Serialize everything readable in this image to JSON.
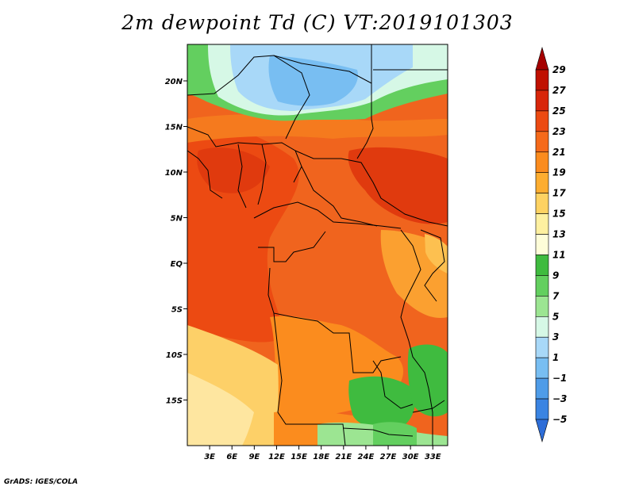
{
  "title": "2m dewpoint Td (C) VT:2019101303",
  "credit": "GrADS: IGES/COLA",
  "map": {
    "lon_range": [
      0,
      35
    ],
    "lat_range": [
      -20,
      24
    ],
    "lon_ticks": [
      {
        "value": 3,
        "label": "3E"
      },
      {
        "value": 6,
        "label": "6E"
      },
      {
        "value": 9,
        "label": "9E"
      },
      {
        "value": 12,
        "label": "12E"
      },
      {
        "value": 15,
        "label": "15E"
      },
      {
        "value": 18,
        "label": "18E"
      },
      {
        "value": 21,
        "label": "21E"
      },
      {
        "value": 24,
        "label": "24E"
      },
      {
        "value": 27,
        "label": "27E"
      },
      {
        "value": 30,
        "label": "30E"
      },
      {
        "value": 33,
        "label": "33E"
      }
    ],
    "lat_ticks": [
      {
        "value": 20,
        "label": "20N"
      },
      {
        "value": 15,
        "label": "15N"
      },
      {
        "value": 10,
        "label": "10N"
      },
      {
        "value": 5,
        "label": "5N"
      },
      {
        "value": 0,
        "label": "EQ"
      },
      {
        "value": -5,
        "label": "5S"
      },
      {
        "value": -10,
        "label": "10S"
      },
      {
        "value": -15,
        "label": "15S"
      }
    ]
  },
  "colorbar": {
    "labels": [
      "29",
      "27",
      "25",
      "23",
      "21",
      "19",
      "17",
      "15",
      "13",
      "11",
      "9",
      "7",
      "5",
      "3",
      "1",
      "−1",
      "−3",
      "−5"
    ],
    "colors": [
      "#a50000",
      "#c01000",
      "#d8260a",
      "#ec4a12",
      "#f56a1a",
      "#fb8c1e",
      "#fdad30",
      "#fed262",
      "#fef0a0",
      "#fefdd8",
      "#3fbb3f",
      "#63cf5f",
      "#9ce592",
      "#d6f8e6",
      "#a8d8f8",
      "#78bef2",
      "#4f9ce8",
      "#3a84e2",
      "#2e6ed8"
    ]
  },
  "regions": [
    {
      "name": "field-base",
      "color": "#f0641e"
    },
    {
      "name": "field-cool-east",
      "color": "#f56a1a"
    },
    {
      "name": "field-west-coast",
      "color": "#ec4a12"
    },
    {
      "name": "field-sahel-orange",
      "color": "#f57a1e"
    },
    {
      "name": "field-southwest-yellow",
      "color": "#fdd068"
    },
    {
      "name": "field-southwest-light",
      "color": "#fee6a0"
    },
    {
      "name": "field-south-orange",
      "color": "#fb8c1e"
    },
    {
      "name": "field-east-orange",
      "color": "#fba030"
    },
    {
      "name": "field-east-yellow",
      "color": "#fdc050"
    },
    {
      "name": "field-sahara-light",
      "color": "#d6f8e6"
    },
    {
      "name": "field-sahara-blue",
      "color": "#a8d8f8"
    },
    {
      "name": "field-sahara-deep",
      "color": "#78bef2"
    },
    {
      "name": "field-green-north",
      "color": "#63cf5f"
    },
    {
      "name": "field-green-south",
      "color": "#3fbb3f"
    },
    {
      "name": "field-green-south-light",
      "color": "#9ce592"
    },
    {
      "name": "field-warm-patch",
      "color": "#e03a0e"
    }
  ]
}
